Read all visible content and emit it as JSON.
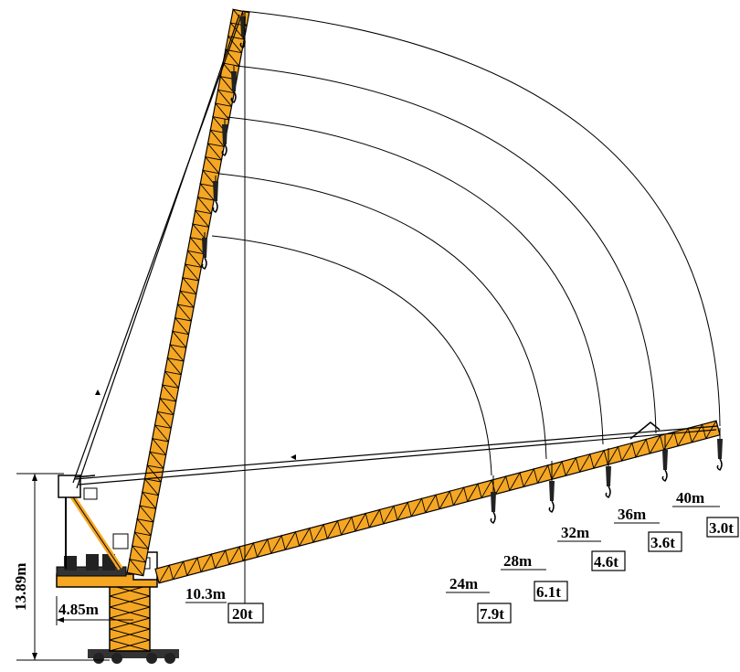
{
  "diagram": {
    "left_height_label": "13.89m",
    "counter_jib_label": "4.85m",
    "min_radius": {
      "radius": "10.3m",
      "load": "20t"
    },
    "positions": [
      {
        "radius": "24m",
        "load": "7.9t"
      },
      {
        "radius": "28m",
        "load": "6.1t"
      },
      {
        "radius": "32m",
        "load": "4.6t"
      },
      {
        "radius": "36m",
        "load": "3.6t"
      },
      {
        "radius": "40m",
        "load": "3.0t"
      }
    ],
    "colors": {
      "boom": "#F5A623",
      "line": "#000000",
      "background": "#FFFFFF"
    }
  }
}
